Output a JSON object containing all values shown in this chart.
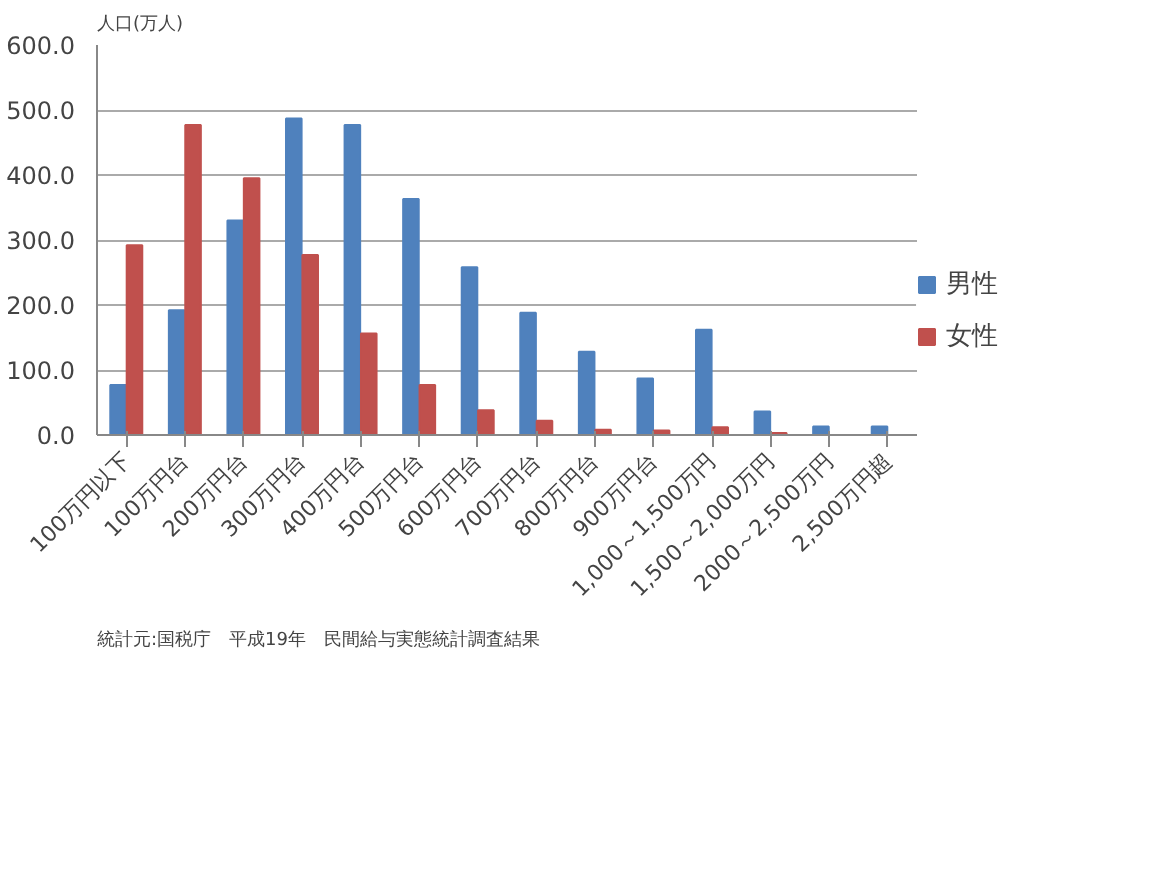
{
  "chart_data": {
    "type": "bar",
    "ylabel": "人口(万人)",
    "categories": [
      "100万円以下",
      "100万円台",
      "200万円台",
      "300万円台",
      "400万円台",
      "500万円台",
      "600万円台",
      "700万円台",
      "800万円台",
      "900万円台",
      "1,000～1,500万円",
      "1,500～2,000万円",
      "2000～2,500万円",
      "2,500万円超"
    ],
    "series": [
      {
        "name": "男性",
        "color": "#4f81bd",
        "values": [
          77,
          192,
          330,
          487,
          477,
          363,
          258,
          188,
          128,
          87,
          162,
          36,
          13,
          13
        ]
      },
      {
        "name": "女性",
        "color": "#c0504d",
        "values": [
          292,
          477,
          395,
          277,
          156,
          77,
          38,
          22,
          8,
          7,
          12,
          3,
          0,
          0
        ]
      }
    ],
    "ylim": [
      0,
      600
    ],
    "yticks": [
      {
        "value": 0,
        "label": "0.0"
      },
      {
        "value": 100,
        "label": "100.0"
      },
      {
        "value": 200,
        "label": "200.0"
      },
      {
        "value": 300,
        "label": "300.0"
      },
      {
        "value": 400,
        "label": "400.0"
      },
      {
        "value": 500,
        "label": "500.0"
      },
      {
        "value": 600,
        "label": "600.0"
      }
    ],
    "grid": "y",
    "legend": "right",
    "annotations": [
      "統計元:国税庁　平成19年　民間給与実態統計調査結果"
    ]
  }
}
